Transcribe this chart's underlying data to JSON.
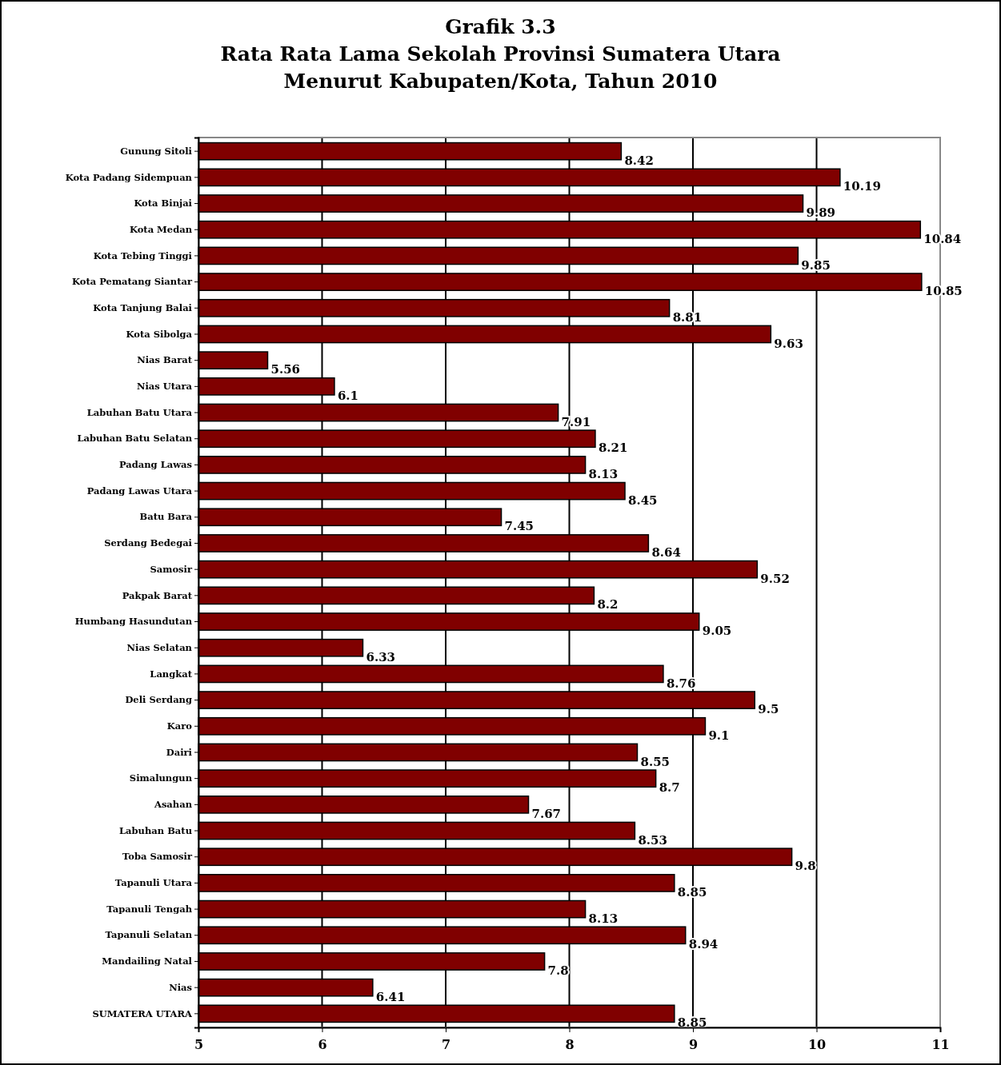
{
  "chart_data": {
    "type": "bar",
    "orientation": "horizontal",
    "title": "Grafik 3.3\nRata Rata Lama Sekolah Provinsi Sumatera Utara\nMenurut Kabupaten/Kota, Tahun  2010",
    "categories": [
      "Gunung Sitoli",
      "Kota Padang Sidempuan",
      "Kota Binjai",
      "Kota Medan",
      "Kota Tebing Tinggi",
      "Kota Pematang  Siantar",
      "Kota Tanjung Balai",
      "Kota Sibolga",
      "Nias Barat",
      "Nias Utara",
      "Labuhan Batu Utara",
      "Labuhan Batu Selatan",
      "Padang Lawas",
      "Padang Lawas Utara",
      "Batu Bara",
      "Serdang Bedegai",
      "Samosir",
      "Pakpak Barat",
      "Humbang Hasundutan",
      "Nias Selatan",
      "Langkat",
      "Deli Serdang",
      "Karo",
      "Dairi",
      "Simalungun",
      "Asahan",
      "Labuhan Batu",
      "Toba Samosir",
      "Tapanuli  Utara",
      "Tapanuli Tengah",
      "Tapanuli Selatan",
      "Mandailing Natal",
      "Nias",
      "SUMATERA UTARA"
    ],
    "values": [
      8.42,
      10.19,
      9.89,
      10.84,
      9.85,
      10.85,
      8.81,
      9.63,
      5.56,
      6.1,
      7.91,
      8.21,
      8.13,
      8.45,
      7.45,
      8.64,
      9.52,
      8.2,
      9.05,
      6.33,
      8.76,
      9.5,
      9.1,
      8.55,
      8.7,
      7.67,
      8.53,
      9.8,
      8.85,
      8.13,
      8.94,
      7.8,
      6.41,
      8.85
    ],
    "color": "#800000",
    "xlim": [
      5,
      11
    ],
    "xticks": [
      5,
      6,
      7,
      8,
      9,
      10,
      11
    ],
    "grid": "x",
    "data_labels": true
  }
}
